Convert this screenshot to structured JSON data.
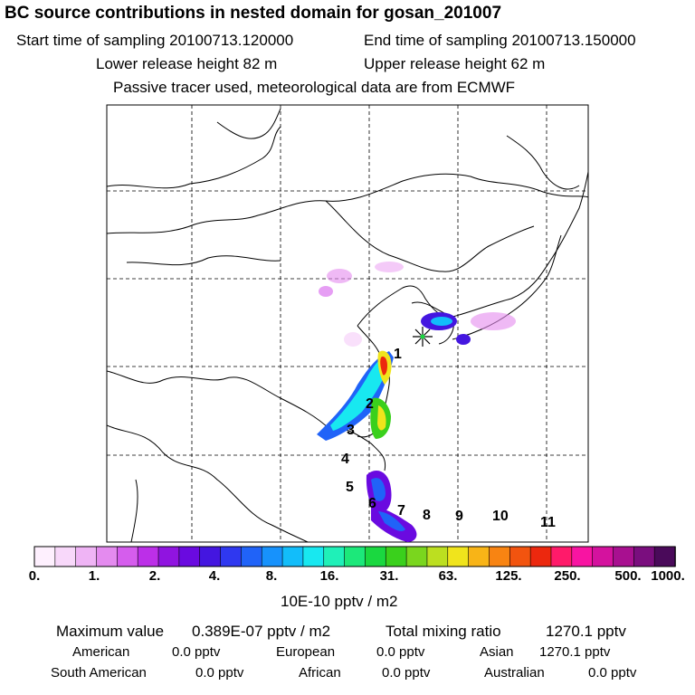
{
  "header": {
    "title": "BC  source contributions in nested domain for gosan_201007",
    "start_time": "Start time of sampling 20100713.120000",
    "end_time": "End time of sampling 20100713.150000",
    "lower_release": "Lower release height   82 m",
    "upper_release": "Upper release height   62 m",
    "note": "Passive tracer used, meteorological data are from ECMWF"
  },
  "map": {
    "region_labels": [
      "1",
      "2",
      "3",
      "4",
      "5",
      "6",
      "7",
      "8",
      "9",
      "10",
      "11"
    ],
    "receptor": "gosan-receptor-marker"
  },
  "colorbar": {
    "ticks": [
      "0.",
      "1.",
      "2.",
      "4.",
      "8.",
      "16.",
      "31.",
      "63.",
      "125.",
      "250.",
      "500.",
      "1000."
    ],
    "unit": "10E-10 pptv / m2",
    "colors": [
      "#fef0fe",
      "#f8d8fa",
      "#efb4f5",
      "#e48bef",
      "#d55ded",
      "#bc2fe8",
      "#9014e0",
      "#6a0ae0",
      "#4416e0",
      "#2f38f0",
      "#2063f8",
      "#1792fc",
      "#12bdfa",
      "#18e8f0",
      "#1ff0b8",
      "#1ce87a",
      "#1ad840",
      "#3ad01c",
      "#7ad61e",
      "#bcdf20",
      "#f0e41c",
      "#f8b417",
      "#f88412",
      "#f2540f",
      "#ec280e",
      "#ff1a6a",
      "#f814a2",
      "#d4129e",
      "#a81090",
      "#7a0e7e",
      "#4a0a5a"
    ]
  },
  "stats": {
    "max_label": "Maximum value",
    "max_value": "0.389E-07 pptv / m2",
    "total_label": "Total mixing ratio",
    "total_value": "1270.1 pptv",
    "american": "American",
    "american_value": "0.0 pptv",
    "european": "European",
    "european_value": "0.0 pptv",
    "asian": "Asian",
    "asian_value": "1270.1 pptv",
    "south_american": "South American",
    "south_american_value": "0.0 pptv",
    "african": "African",
    "african_value": "0.0 pptv",
    "australian": "Australian",
    "australian_value": "0.0 pptv"
  }
}
